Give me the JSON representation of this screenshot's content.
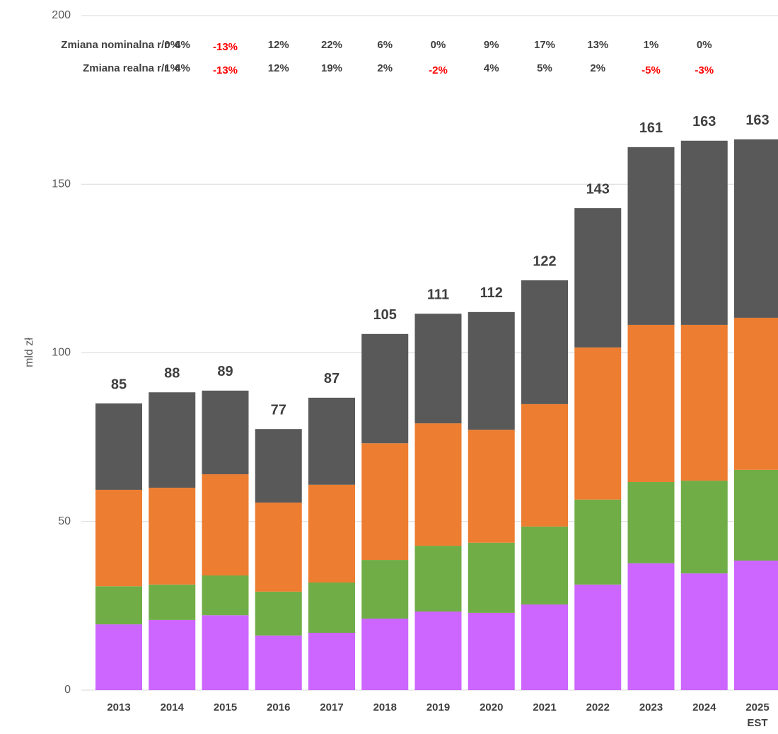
{
  "chart_data": {
    "type": "stacked_bar",
    "y_label": "mld zł",
    "categories": [
      "2013",
      "2014",
      "2015",
      "2016",
      "2017",
      "2018",
      "2019",
      "2020",
      "2021",
      "2022",
      "2023",
      "2024",
      "2025\nEST"
    ],
    "series": [
      {
        "color": "#cc66ff",
        "values": [
          19.5,
          20.8,
          22.2,
          16.2,
          17.0,
          21.2,
          23.3,
          22.9,
          25.4,
          31.3,
          37.6,
          34.6,
          38.4
        ]
      },
      {
        "color": "#70ad47",
        "values": [
          11.3,
          10.5,
          11.8,
          13.0,
          14.9,
          17.4,
          19.5,
          20.8,
          23.1,
          25.2,
          24.1,
          27.5,
          26.9
        ]
      },
      {
        "color": "#ed7d31",
        "values": [
          28.6,
          28.7,
          30.0,
          26.4,
          29.0,
          34.6,
          36.3,
          33.5,
          36.3,
          45.1,
          46.6,
          46.2,
          45.1
        ]
      },
      {
        "color": "#595959",
        "values": [
          25.6,
          28.3,
          24.8,
          21.8,
          25.8,
          32.4,
          32.5,
          34.9,
          36.7,
          41.3,
          52.7,
          54.6,
          52.9
        ]
      }
    ],
    "totals": [
      85,
      88,
      89,
      77,
      87,
      105,
      111,
      112,
      122,
      143,
      161,
      163,
      163
    ],
    "change_rows": [
      {
        "label": "Zmiana nominalna r/r",
        "values": [
          4,
          0,
          -13,
          12,
          22,
          6,
          0,
          9,
          17,
          13,
          1,
          0
        ],
        "value_labels": [
          "4%",
          "0%",
          "-13%",
          "12%",
          "22%",
          "6%",
          "0%",
          "9%",
          "17%",
          "13%",
          "1%",
          "0%"
        ]
      },
      {
        "label": "Zmiana realna r/r",
        "values": [
          4,
          1,
          -13,
          12,
          19,
          2,
          -2,
          4,
          5,
          2,
          -5,
          -3
        ],
        "value_labels": [
          "4%",
          "1%",
          "-13%",
          "12%",
          "19%",
          "2%",
          "-2%",
          "4%",
          "5%",
          "2%",
          "-5%",
          "-3%"
        ]
      }
    ],
    "positive_color": "#404040",
    "negative_color": "#ff0000",
    "ylim": [
      0,
      200
    ],
    "yticks": [
      0,
      50,
      100,
      150,
      200
    ],
    "grid": true
  }
}
